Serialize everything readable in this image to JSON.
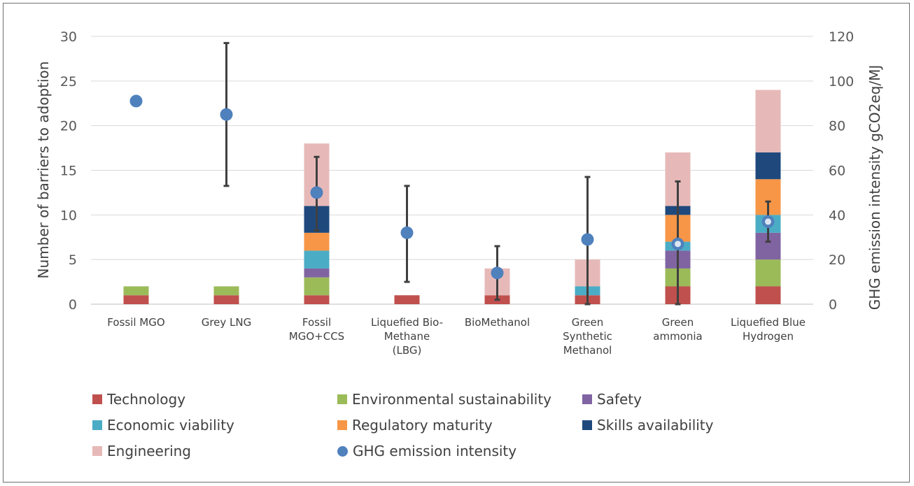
{
  "chart_data": {
    "type": "bar",
    "stacked": true,
    "categories": [
      [
        "Fossil MGO"
      ],
      [
        "Grey LNG"
      ],
      [
        "Fossil",
        "MGO+CCS"
      ],
      [
        "Liquefied Bio-",
        "Methane",
        "(LBG)"
      ],
      [
        "BioMethanol"
      ],
      [
        "Green",
        "Synthetic",
        "Methanol"
      ],
      [
        "Green",
        "ammonia"
      ],
      [
        "Liquefied Blue",
        "Hydrogen"
      ]
    ],
    "ylabel": "Number of barriers to adoption",
    "ylabel_right": "GHG emission intensity gCO2eq/MJ",
    "ylim": [
      0,
      30
    ],
    "y_ticks": [
      0,
      5,
      10,
      15,
      20,
      25,
      30
    ],
    "ylim_right": [
      0,
      120
    ],
    "y_ticks_right": [
      0,
      20,
      40,
      60,
      80,
      100,
      120
    ],
    "grid": true,
    "legend_position": "bottom",
    "series": [
      {
        "name": "Technology",
        "color": "#c0504d",
        "values": [
          1,
          1,
          1,
          1,
          1,
          1,
          2,
          2
        ]
      },
      {
        "name": "Environmental sustainability",
        "color": "#9bbb59",
        "values": [
          1,
          1,
          2,
          0,
          0,
          0,
          2,
          3
        ]
      },
      {
        "name": "Safety",
        "color": "#8064a2",
        "values": [
          0,
          0,
          1,
          0,
          0,
          0,
          2,
          3
        ]
      },
      {
        "name": "Economic viability",
        "color": "#4bacc6",
        "values": [
          0,
          0,
          2,
          0,
          0,
          1,
          1,
          2
        ]
      },
      {
        "name": "Regulatory maturity",
        "color": "#f79646",
        "values": [
          0,
          0,
          2,
          0,
          0,
          0,
          3,
          4
        ]
      },
      {
        "name": "Skills availability",
        "color": "#1f497d",
        "values": [
          0,
          0,
          3,
          0,
          0,
          0,
          1,
          3
        ]
      },
      {
        "name": "Engineering",
        "color": "#e6b9b8",
        "values": [
          0,
          0,
          7,
          0,
          3,
          3,
          6,
          7
        ]
      }
    ],
    "ghg": {
      "name": "GHG emission intensity",
      "color": "#4f81bd",
      "values": [
        91,
        85,
        50,
        32,
        14,
        29,
        27,
        37
      ],
      "error_low": [
        null,
        53,
        33,
        10,
        2,
        0,
        0,
        28
      ],
      "error_high": [
        null,
        117,
        66,
        53,
        26,
        57,
        55,
        46
      ],
      "hollow_center": [
        false,
        false,
        false,
        false,
        false,
        false,
        true,
        true
      ]
    }
  },
  "legend": {
    "items": [
      {
        "label": "Technology",
        "color": "#c0504d",
        "kind": "swatch"
      },
      {
        "label": "Environmental sustainability",
        "color": "#9bbb59",
        "kind": "swatch"
      },
      {
        "label": "Safety",
        "color": "#8064a2",
        "kind": "swatch"
      },
      {
        "label": "Economic viability",
        "color": "#4bacc6",
        "kind": "swatch"
      },
      {
        "label": "Regulatory maturity",
        "color": "#f79646",
        "kind": "swatch"
      },
      {
        "label": "Skills availability",
        "color": "#1f497d",
        "kind": "swatch"
      },
      {
        "label": "Engineering",
        "color": "#e6b9b8",
        "kind": "swatch"
      },
      {
        "label": "GHG emission intensity",
        "color": "#4f81bd",
        "kind": "dot"
      }
    ]
  }
}
